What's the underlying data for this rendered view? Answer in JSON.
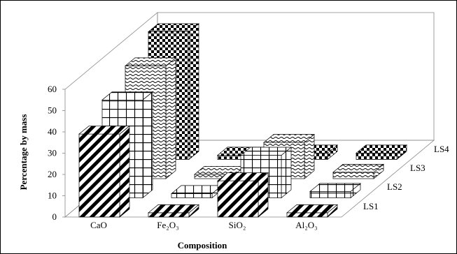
{
  "chart_data": {
    "type": "bar",
    "title": "",
    "xlabel": "Composition",
    "ylabel": "Percentage by mass",
    "ylim": [
      0,
      60
    ],
    "yticks": [
      "0",
      "10",
      "20",
      "30",
      "40",
      "50",
      "60"
    ],
    "categories": [
      "CaO",
      "Fe₂O₃",
      "SiO₂",
      "Al₂O₃"
    ],
    "series": [
      {
        "name": "LS1",
        "values": [
          39,
          2,
          17,
          2
        ],
        "pattern": "diagonal"
      },
      {
        "name": "LS2",
        "values": [
          46,
          2,
          20,
          3
        ],
        "pattern": "grid"
      },
      {
        "name": "LS3",
        "values": [
          53,
          2,
          17,
          3
        ],
        "pattern": "wave"
      },
      {
        "name": "LS4",
        "values": [
          60,
          2,
          3,
          3
        ],
        "pattern": "checker"
      }
    ],
    "grid": false,
    "legend": "depth-axis"
  }
}
